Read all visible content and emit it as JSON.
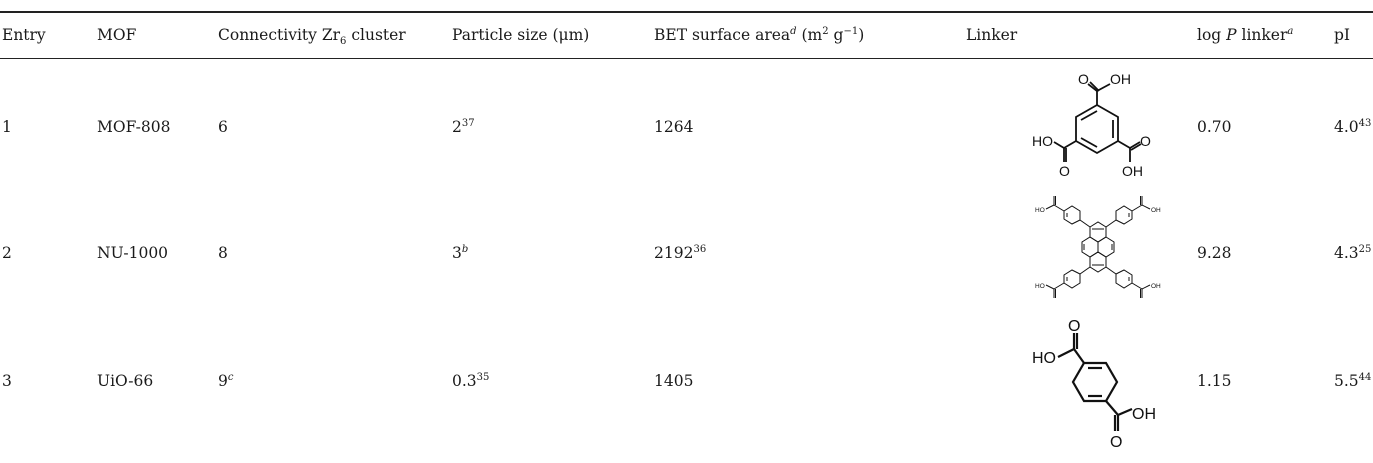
{
  "table": {
    "headers": {
      "entry": "Entry",
      "mof": "MOF",
      "connectivity": {
        "pre": "Connectivity Zr",
        "sub": "6",
        "post": " cluster"
      },
      "particle": "Particle size (μm)",
      "bet": {
        "pre": "BET surface area",
        "sup": "d",
        "mid": " (m",
        "sup2": "2",
        "mid2": " g",
        "sup3": "−1",
        "post": ")"
      },
      "linker": "Linker",
      "logp": {
        "pre": "log ",
        "italic": "P",
        "mid": " linker",
        "sup": "a"
      },
      "pi": "pI"
    },
    "rows": [
      {
        "entry": "1",
        "mof": "MOF-808",
        "connectivity": "6",
        "connectivity_sup": "",
        "particle": "2",
        "particle_sup": "37",
        "bet": "1264",
        "bet_sup": "",
        "logp": "0.70",
        "pi": "4.0",
        "pi_sup": "43",
        "linker_labels": {
          "oh_top": "OH",
          "o_top": "O",
          "ho_left": "HO",
          "o_left": "O",
          "o_right": "O",
          "oh_right": "OH"
        }
      },
      {
        "entry": "2",
        "mof": "NU-1000",
        "connectivity": "8",
        "connectivity_sup": "",
        "particle": "3",
        "particle_sup": "b",
        "bet": "2192",
        "bet_sup": "36",
        "logp": "9.28",
        "pi": "4.3",
        "pi_sup": "25",
        "linker_labels": {
          "ho_tl": "HO",
          "oh_tr": "OH",
          "ho_bl": "HO",
          "oh_br": "OH",
          "o": "O"
        }
      },
      {
        "entry": "3",
        "mof": "UiO-66",
        "connectivity": "9",
        "connectivity_sup": "c",
        "particle": "0.3",
        "particle_sup": "35",
        "bet": "1405",
        "bet_sup": "",
        "logp": "1.15",
        "pi": "5.5",
        "pi_sup": "44",
        "linker_labels": {
          "ho": "HO",
          "o_top": "O",
          "oh": "OH",
          "o_bottom": "O"
        }
      }
    ]
  }
}
